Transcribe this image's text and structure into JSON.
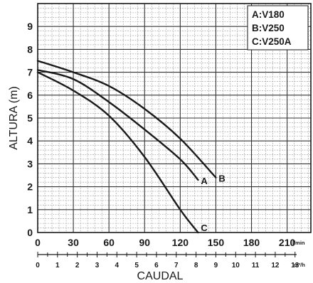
{
  "chart_data": {
    "type": "line",
    "ylabel": "ALTURA (m)",
    "xlabel": "CAUDAL",
    "x_unit_primary": "l/min",
    "x_unit_secondary": "m³/h",
    "xlim": [
      0,
      230
    ],
    "ylim": [
      0,
      10
    ],
    "x_ticks": [
      "0",
      "30",
      "60",
      "90",
      "120",
      "150",
      "180",
      "210"
    ],
    "x_ticks_secondary": [
      "0",
      "1",
      "2",
      "3",
      "4",
      "5",
      "6",
      "7",
      "8",
      "9",
      "10",
      "11",
      "12",
      "13"
    ],
    "y_ticks": [
      "0",
      "1",
      "2",
      "3",
      "4",
      "5",
      "6",
      "7",
      "8",
      "9"
    ],
    "grid": true,
    "legend_position": "top-right",
    "legend": [
      "A:V180",
      "B:V250",
      "C:V250A"
    ],
    "series": [
      {
        "name": "A",
        "x": [
          0,
          30,
          60,
          90,
          120,
          135
        ],
        "y": [
          7.1,
          6.7,
          5.7,
          4.5,
          3.2,
          2.3
        ]
      },
      {
        "name": "B",
        "x": [
          0,
          30,
          60,
          90,
          120,
          150
        ],
        "y": [
          7.5,
          7.0,
          6.4,
          5.4,
          4.1,
          2.4
        ]
      },
      {
        "name": "C",
        "x": [
          0,
          30,
          60,
          90,
          120,
          135
        ],
        "y": [
          7.0,
          6.2,
          5.1,
          3.3,
          1.0,
          0.0
        ]
      }
    ]
  }
}
